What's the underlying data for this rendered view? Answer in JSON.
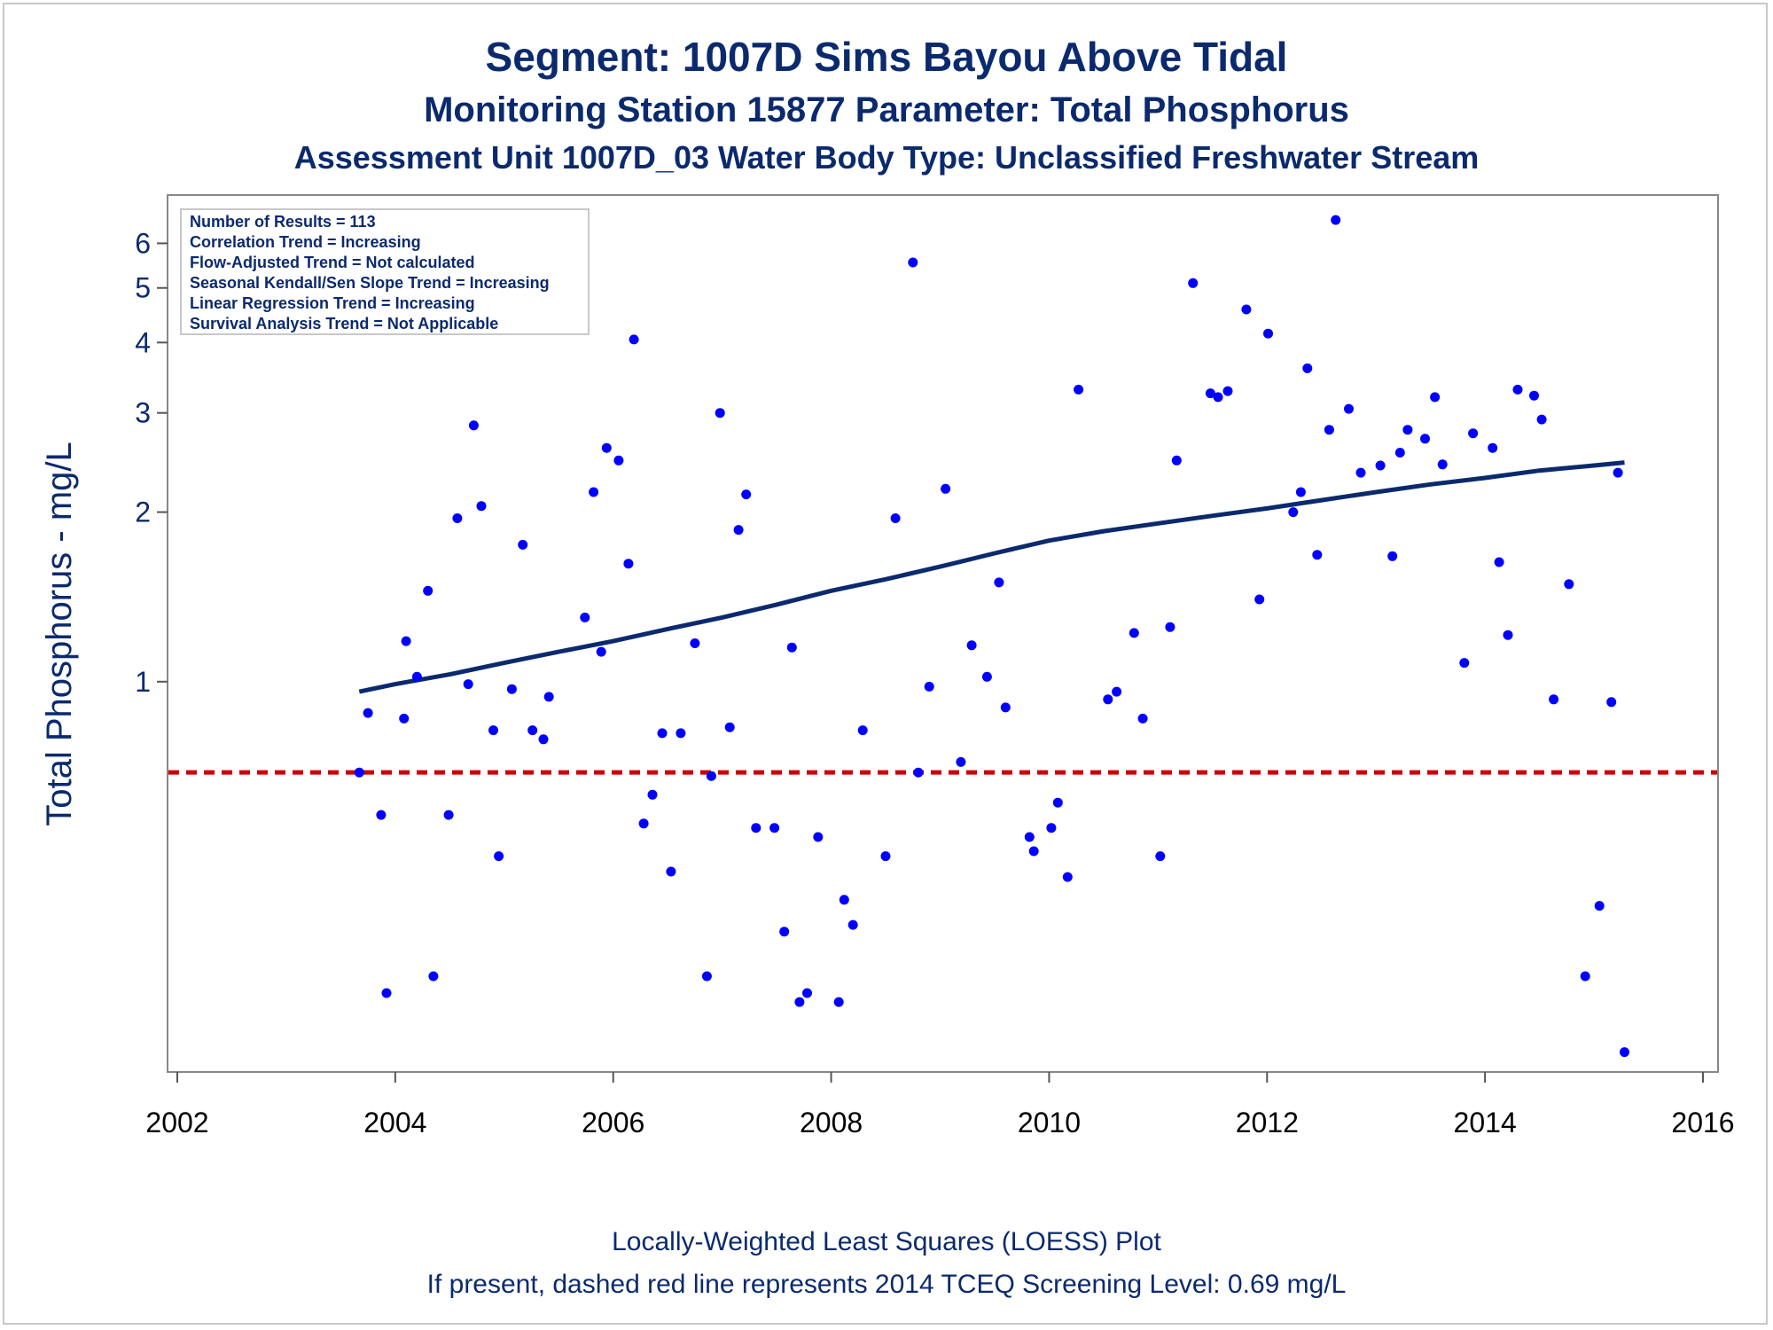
{
  "titles": {
    "line1": "Segment: 1007D  Sims Bayou Above Tidal",
    "line2": "Monitoring Station 15877 Parameter: Total Phosphorus",
    "line3": "Assessment Unit 1007D_03   Water Body Type: Unclassified Freshwater Stream"
  },
  "stats_box": [
    "Number of Results = 113",
    "Correlation Trend = Increasing",
    "Flow-Adjusted Trend = Not calculated",
    "Seasonal Kendall/Sen Slope Trend = Increasing",
    "Linear Regression Trend = Increasing",
    "Survival Analysis Trend = Not Applicable"
  ],
  "footer": {
    "line1": "Locally-Weighted Least Squares (LOESS) Plot",
    "line2": "If present, dashed red line represents 2014 TCEQ Screening Level: 0.69 mg/L"
  },
  "colors": {
    "points": "#0000ff",
    "loess": "#0b2a6e",
    "screening": "#cc0000",
    "text": "#0b2a6e"
  },
  "chart_data": {
    "type": "scatter",
    "title": "Segment: 1007D  Sims Bayou Above Tidal",
    "ylabel": "Total Phosphorus - mg/L",
    "xlabel": "",
    "yscale": "log",
    "xlim": [
      2002,
      2016
    ],
    "ylim": [
      0.17,
      6.7
    ],
    "x_ticks": [
      "2002",
      "2004",
      "2006",
      "2008",
      "2010",
      "2012",
      "2014",
      "2016"
    ],
    "y_ticks": [
      "1",
      "2",
      "3",
      "4",
      "5",
      "6"
    ],
    "grid": false,
    "screening_level": 0.69,
    "points": [
      [
        2003.67,
        0.69
      ],
      [
        2003.75,
        0.88
      ],
      [
        2003.87,
        0.58
      ],
      [
        2003.92,
        0.28
      ],
      [
        2004.08,
        0.86
      ],
      [
        2004.1,
        1.18
      ],
      [
        2004.2,
        1.02
      ],
      [
        2004.3,
        1.45
      ],
      [
        2004.35,
        0.3
      ],
      [
        2004.49,
        0.58
      ],
      [
        2004.57,
        1.95
      ],
      [
        2004.67,
        0.99
      ],
      [
        2004.72,
        2.85
      ],
      [
        2004.79,
        2.05
      ],
      [
        2004.9,
        0.82
      ],
      [
        2004.95,
        0.49
      ],
      [
        2005.07,
        0.97
      ],
      [
        2005.17,
        1.75
      ],
      [
        2005.26,
        0.82
      ],
      [
        2005.36,
        0.79
      ],
      [
        2005.41,
        0.94
      ],
      [
        2005.74,
        1.3
      ],
      [
        2005.82,
        2.17
      ],
      [
        2005.89,
        1.13
      ],
      [
        2005.94,
        2.6
      ],
      [
        2006.05,
        2.47
      ],
      [
        2006.14,
        1.62
      ],
      [
        2006.19,
        4.05
      ],
      [
        2006.28,
        0.56
      ],
      [
        2006.36,
        0.63
      ],
      [
        2006.45,
        0.81
      ],
      [
        2006.53,
        0.46
      ],
      [
        2006.62,
        0.81
      ],
      [
        2006.75,
        1.17
      ],
      [
        2006.86,
        0.3
      ],
      [
        2006.9,
        0.68
      ],
      [
        2006.98,
        3.0
      ],
      [
        2007.07,
        0.83
      ],
      [
        2007.15,
        1.86
      ],
      [
        2007.22,
        2.15
      ],
      [
        2007.31,
        0.55
      ],
      [
        2007.38,
        0.18
      ],
      [
        2007.48,
        0.55
      ],
      [
        2007.57,
        0.36
      ],
      [
        2007.64,
        1.15
      ],
      [
        2007.71,
        0.27
      ],
      [
        2007.78,
        0.28
      ],
      [
        2007.88,
        0.53
      ],
      [
        2008.07,
        0.27
      ],
      [
        2008.12,
        0.41
      ],
      [
        2008.2,
        0.37
      ],
      [
        2008.29,
        0.82
      ],
      [
        2008.5,
        0.49
      ],
      [
        2008.59,
        1.95
      ],
      [
        2008.75,
        5.55
      ],
      [
        2008.8,
        0.69
      ],
      [
        2008.9,
        0.98
      ],
      [
        2009.05,
        2.2
      ],
      [
        2009.19,
        0.72
      ],
      [
        2009.29,
        1.16
      ],
      [
        2009.43,
        1.02
      ],
      [
        2009.54,
        1.5
      ],
      [
        2009.6,
        0.9
      ],
      [
        2009.82,
        0.53
      ],
      [
        2009.86,
        0.5
      ],
      [
        2010.02,
        0.55
      ],
      [
        2010.08,
        0.61
      ],
      [
        2010.17,
        0.45
      ],
      [
        2010.27,
        3.3
      ],
      [
        2010.54,
        0.93
      ],
      [
        2010.62,
        0.96
      ],
      [
        2010.78,
        1.22
      ],
      [
        2010.86,
        0.86
      ],
      [
        2011.02,
        0.49
      ],
      [
        2011.11,
        1.25
      ],
      [
        2011.17,
        2.47
      ],
      [
        2011.32,
        5.1
      ],
      [
        2011.48,
        3.25
      ],
      [
        2011.55,
        3.2
      ],
      [
        2011.64,
        3.28
      ],
      [
        2011.81,
        4.58
      ],
      [
        2011.93,
        1.4
      ],
      [
        2012.01,
        4.15
      ],
      [
        2012.24,
        2.0
      ],
      [
        2012.31,
        2.17
      ],
      [
        2012.37,
        3.6
      ],
      [
        2012.46,
        1.68
      ],
      [
        2012.57,
        2.8
      ],
      [
        2012.63,
        6.6
      ],
      [
        2012.75,
        3.05
      ],
      [
        2012.86,
        2.35
      ],
      [
        2013.04,
        2.42
      ],
      [
        2013.15,
        1.67
      ],
      [
        2013.22,
        2.55
      ],
      [
        2013.29,
        2.8
      ],
      [
        2013.45,
        2.7
      ],
      [
        2013.54,
        3.2
      ],
      [
        2013.61,
        2.43
      ],
      [
        2013.81,
        1.08
      ],
      [
        2013.89,
        2.76
      ],
      [
        2014.07,
        2.6
      ],
      [
        2014.13,
        1.63
      ],
      [
        2014.21,
        1.21
      ],
      [
        2014.3,
        3.3
      ],
      [
        2014.45,
        3.22
      ],
      [
        2014.52,
        2.92
      ],
      [
        2014.63,
        0.93
      ],
      [
        2014.77,
        1.49
      ],
      [
        2014.92,
        0.3
      ],
      [
        2015.05,
        0.4
      ],
      [
        2015.16,
        0.92
      ],
      [
        2015.22,
        2.35
      ],
      [
        2015.28,
        0.22
      ]
    ],
    "loess": [
      [
        2003.67,
        0.96
      ],
      [
        2004.0,
        0.99
      ],
      [
        2004.5,
        1.03
      ],
      [
        2005.0,
        1.08
      ],
      [
        2005.5,
        1.13
      ],
      [
        2006.0,
        1.18
      ],
      [
        2006.5,
        1.24
      ],
      [
        2007.0,
        1.3
      ],
      [
        2007.5,
        1.37
      ],
      [
        2008.0,
        1.45
      ],
      [
        2008.5,
        1.52
      ],
      [
        2009.0,
        1.6
      ],
      [
        2009.5,
        1.69
      ],
      [
        2010.0,
        1.78
      ],
      [
        2010.5,
        1.85
      ],
      [
        2011.0,
        1.91
      ],
      [
        2011.5,
        1.97
      ],
      [
        2012.0,
        2.03
      ],
      [
        2012.5,
        2.1
      ],
      [
        2013.0,
        2.17
      ],
      [
        2013.5,
        2.24
      ],
      [
        2014.0,
        2.3
      ],
      [
        2014.5,
        2.37
      ],
      [
        2015.0,
        2.42
      ],
      [
        2015.28,
        2.45
      ]
    ]
  }
}
